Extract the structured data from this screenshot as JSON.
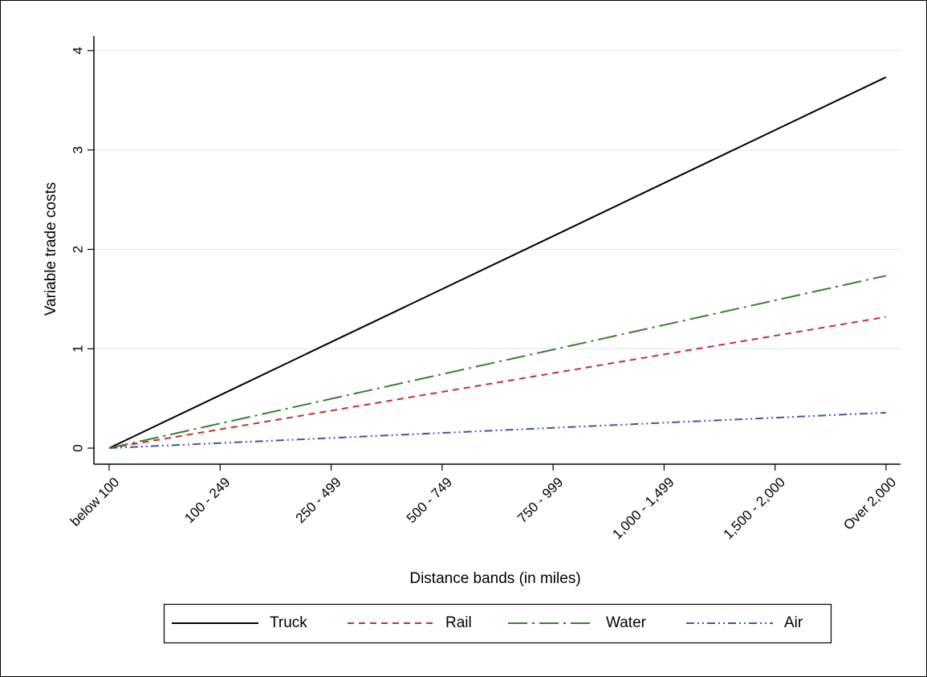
{
  "chart_data": {
    "type": "line",
    "title": "",
    "xlabel": "Distance bands (in miles)",
    "ylabel": "Variable trade costs",
    "categories": [
      "below 100",
      "100 - 249",
      "250 - 499",
      "500 - 749",
      "750 - 999",
      "1,000 - 1,499",
      "1,500 - 2,000",
      "Over 2,000"
    ],
    "ylim": [
      0,
      4
    ],
    "yticks": [
      "0",
      "1",
      "2",
      "3",
      "4"
    ],
    "grid": true,
    "legend_position": "bottom",
    "series": [
      {
        "name": "Truck",
        "color": "#000000",
        "dash": "solid",
        "values": [
          0,
          0.533,
          1.067,
          1.6,
          2.133,
          2.667,
          3.2,
          3.733
        ]
      },
      {
        "name": "Rail",
        "color": "#c0303a",
        "dash": "dashed",
        "values": [
          0,
          0.189,
          0.377,
          0.566,
          0.754,
          0.943,
          1.131,
          1.32
        ]
      },
      {
        "name": "Water",
        "color": "#3a7d32",
        "dash": "longdash-dot",
        "values": [
          0,
          0.248,
          0.496,
          0.744,
          0.991,
          1.239,
          1.487,
          1.735
        ]
      },
      {
        "name": "Air",
        "color": "#3a58a8",
        "dash": "dash-dot-dot",
        "values": [
          0,
          0.051,
          0.102,
          0.153,
          0.204,
          0.255,
          0.306,
          0.357
        ]
      }
    ]
  }
}
